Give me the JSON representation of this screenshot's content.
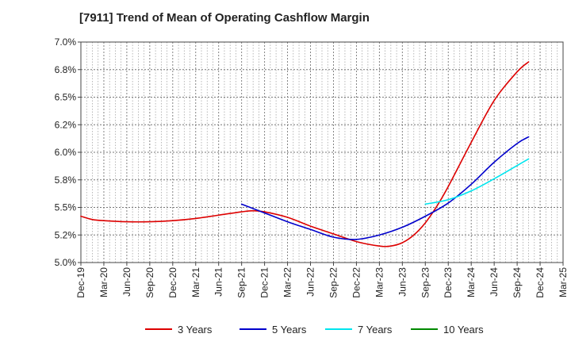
{
  "chart_data": {
    "type": "line",
    "title": "[7911]  Trend of Mean of Operating Cashflow Margin",
    "xlabel": "",
    "ylabel": "",
    "ylim": [
      5.0,
      7.0
    ],
    "y_ticks": [
      5.0,
      5.25,
      5.5,
      5.75,
      6.0,
      6.25,
      6.5,
      6.75,
      7.0
    ],
    "y_tick_labels": [
      "5.0%",
      "5.2%",
      "5.5%",
      "5.8%",
      "6.0%",
      "6.2%",
      "6.5%",
      "6.8%",
      "7.0%"
    ],
    "x_tick_labels": [
      "Dec-19",
      "Mar-20",
      "Jun-20",
      "Sep-20",
      "Dec-20",
      "Mar-21",
      "Jun-21",
      "Sep-21",
      "Dec-21",
      "Mar-22",
      "Jun-22",
      "Sep-22",
      "Dec-22",
      "Mar-23",
      "Jun-23",
      "Sep-23",
      "Dec-23",
      "Mar-24",
      "Jun-24",
      "Sep-24",
      "Dec-24",
      "Mar-25"
    ],
    "grid": true,
    "legend_position": "bottom",
    "series": [
      {
        "name": "3 Years",
        "color": "#dd0000",
        "points": [
          [
            0,
            5.42
          ],
          [
            0.5,
            5.39
          ],
          [
            1,
            5.38
          ],
          [
            2,
            5.37
          ],
          [
            3,
            5.37
          ],
          [
            4,
            5.38
          ],
          [
            5,
            5.4
          ],
          [
            6,
            5.43
          ],
          [
            7,
            5.46
          ],
          [
            7.5,
            5.47
          ],
          [
            8,
            5.46
          ],
          [
            9,
            5.41
          ],
          [
            10,
            5.33
          ],
          [
            11,
            5.26
          ],
          [
            12,
            5.19
          ],
          [
            13,
            5.15
          ],
          [
            13.5,
            5.15
          ],
          [
            14,
            5.18
          ],
          [
            14.5,
            5.25
          ],
          [
            15,
            5.36
          ],
          [
            15.5,
            5.51
          ],
          [
            16,
            5.69
          ],
          [
            17,
            6.09
          ],
          [
            18,
            6.47
          ],
          [
            19,
            6.73
          ],
          [
            19.5,
            6.82
          ]
        ]
      },
      {
        "name": "5 Years",
        "color": "#0000cc",
        "points": [
          [
            7,
            5.53
          ],
          [
            8,
            5.45
          ],
          [
            9,
            5.37
          ],
          [
            10,
            5.3
          ],
          [
            11,
            5.23
          ],
          [
            12,
            5.21
          ],
          [
            13,
            5.25
          ],
          [
            14,
            5.32
          ],
          [
            15,
            5.42
          ],
          [
            16,
            5.54
          ],
          [
            17,
            5.71
          ],
          [
            18,
            5.91
          ],
          [
            19,
            6.08
          ],
          [
            19.5,
            6.14
          ]
        ]
      },
      {
        "name": "7 Years",
        "color": "#00e5ee",
        "points": [
          [
            15,
            5.53
          ],
          [
            16,
            5.57
          ],
          [
            17,
            5.65
          ],
          [
            18,
            5.76
          ],
          [
            19,
            5.88
          ],
          [
            19.5,
            5.94
          ]
        ]
      },
      {
        "name": "10 Years",
        "color": "#008800",
        "points": []
      }
    ]
  }
}
